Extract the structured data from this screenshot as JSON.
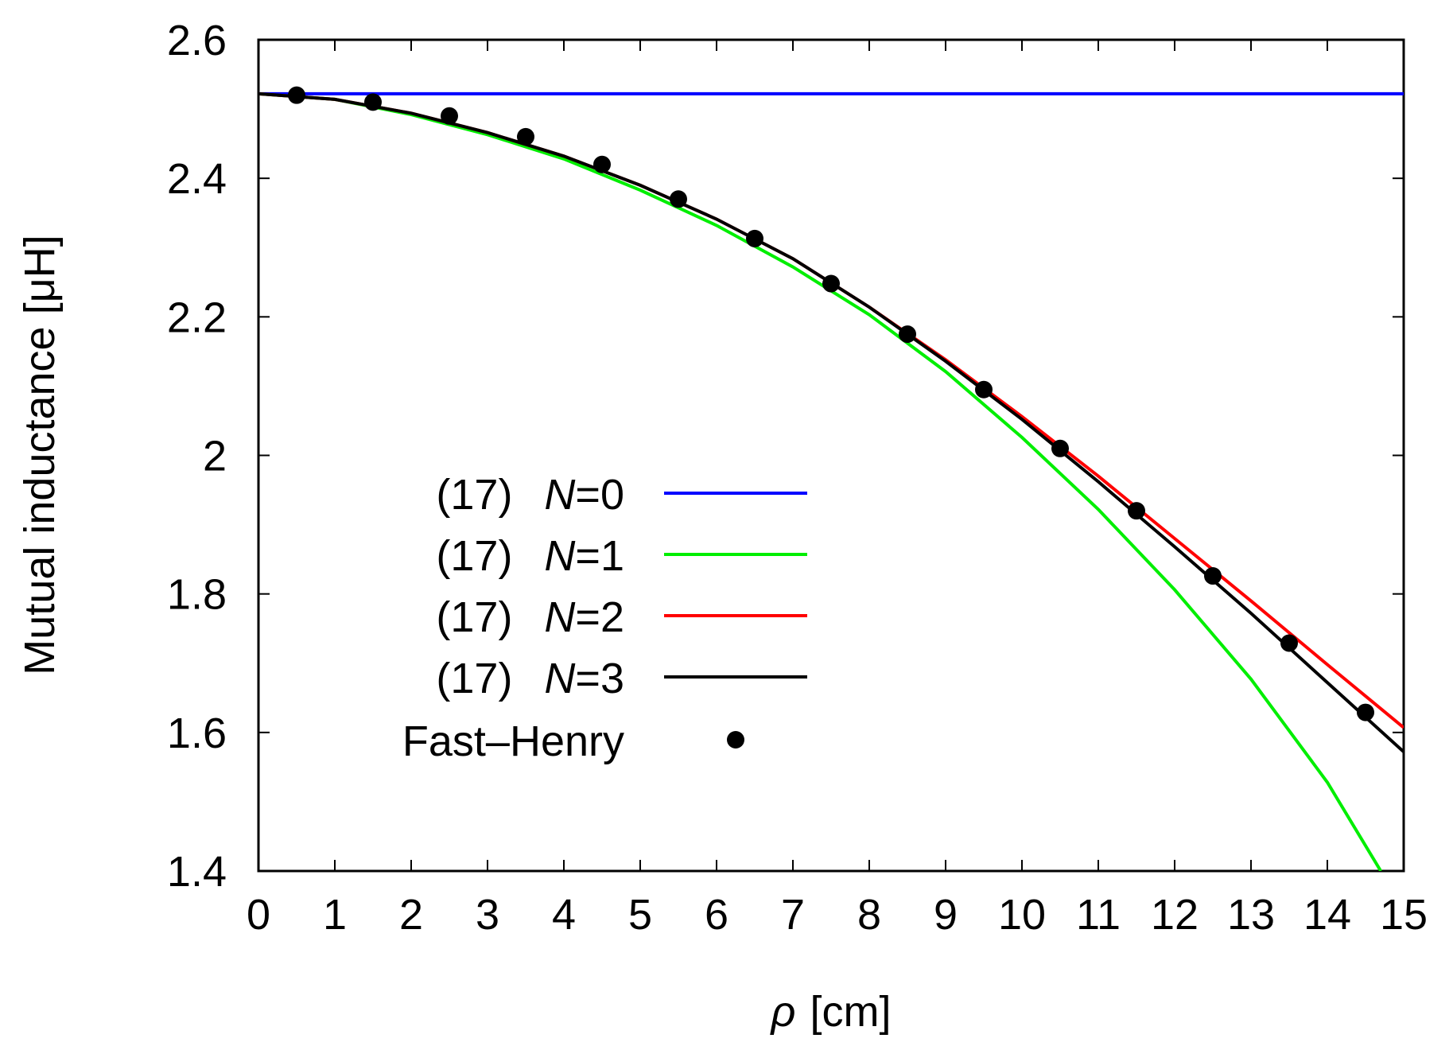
{
  "chart_data": {
    "type": "line",
    "title": "",
    "xlabel": {
      "symbol": "ρ",
      "unit": "[cm]"
    },
    "ylabel": "Mutual inductance  [μH]",
    "xlim": [
      0,
      15
    ],
    "ylim": [
      1.4,
      2.6
    ],
    "xticks": [
      0,
      1,
      2,
      3,
      4,
      5,
      6,
      7,
      8,
      9,
      10,
      11,
      12,
      13,
      14,
      15
    ],
    "yticks": [
      1.4,
      1.6,
      1.8,
      2,
      2.2,
      2.4,
      2.6
    ],
    "ytick_labels": [
      "1.4",
      "1.6",
      "1.8",
      "2",
      "2.2",
      "2.4",
      "2.6"
    ],
    "grid": false,
    "legend_position": "center-left",
    "series": [
      {
        "name": "(17)  N=0",
        "label_prefix": "(17)",
        "label_var": "N",
        "label_value": "=0",
        "style": "line",
        "color": "#0000ff",
        "x": [
          0,
          1,
          2,
          3,
          4,
          5,
          6,
          7,
          8,
          9,
          10,
          11,
          12,
          13,
          14,
          15
        ],
        "y": [
          2.522,
          2.522,
          2.522,
          2.522,
          2.522,
          2.522,
          2.522,
          2.522,
          2.522,
          2.522,
          2.522,
          2.522,
          2.522,
          2.522,
          2.522,
          2.522
        ]
      },
      {
        "name": "(17)  N=1",
        "label_prefix": "(17)",
        "label_var": "N",
        "label_value": "=1",
        "style": "line",
        "color": "#00ee00",
        "x": [
          0,
          1,
          2,
          3,
          4,
          5,
          6,
          7,
          8,
          9,
          10,
          11,
          12,
          13,
          14,
          14.7
        ],
        "y": [
          2.522,
          2.514,
          2.492,
          2.463,
          2.428,
          2.383,
          2.332,
          2.272,
          2.203,
          2.121,
          2.026,
          1.922,
          1.806,
          1.677,
          1.528,
          1.4
        ]
      },
      {
        "name": "(17)  N=2",
        "label_prefix": "(17)",
        "label_var": "N",
        "label_value": "=2",
        "style": "line",
        "color": "#ff0000",
        "x": [
          0,
          1,
          2,
          3,
          4,
          5,
          6,
          7,
          8,
          9,
          10,
          11,
          12,
          13,
          14,
          15
        ],
        "y": [
          2.522,
          2.514,
          2.494,
          2.466,
          2.432,
          2.39,
          2.341,
          2.284,
          2.214,
          2.138,
          2.056,
          1.97,
          1.88,
          1.79,
          1.698,
          1.607
        ]
      },
      {
        "name": "(17)  N=3",
        "label_prefix": "(17)",
        "label_var": "N",
        "label_value": "=3",
        "style": "line",
        "color": "#000000",
        "x": [
          0,
          1,
          2,
          3,
          4,
          5,
          6,
          7,
          8,
          9,
          10,
          11,
          12,
          13,
          14,
          15
        ],
        "y": [
          2.522,
          2.514,
          2.494,
          2.466,
          2.432,
          2.39,
          2.341,
          2.284,
          2.214,
          2.136,
          2.052,
          1.962,
          1.868,
          1.772,
          1.672,
          1.572
        ]
      },
      {
        "name": "Fast–Henry",
        "style": "points",
        "color": "#000000",
        "x": [
          0.5,
          1.5,
          2.5,
          3.5,
          4.5,
          5.5,
          6.5,
          7.5,
          8.5,
          9.5,
          10.5,
          11.5,
          12.5,
          13.5,
          14.5
        ],
        "y": [
          2.52,
          2.51,
          2.49,
          2.46,
          2.42,
          2.37,
          2.313,
          2.248,
          2.175,
          2.095,
          2.01,
          1.92,
          1.826,
          1.729,
          1.629
        ]
      }
    ]
  }
}
